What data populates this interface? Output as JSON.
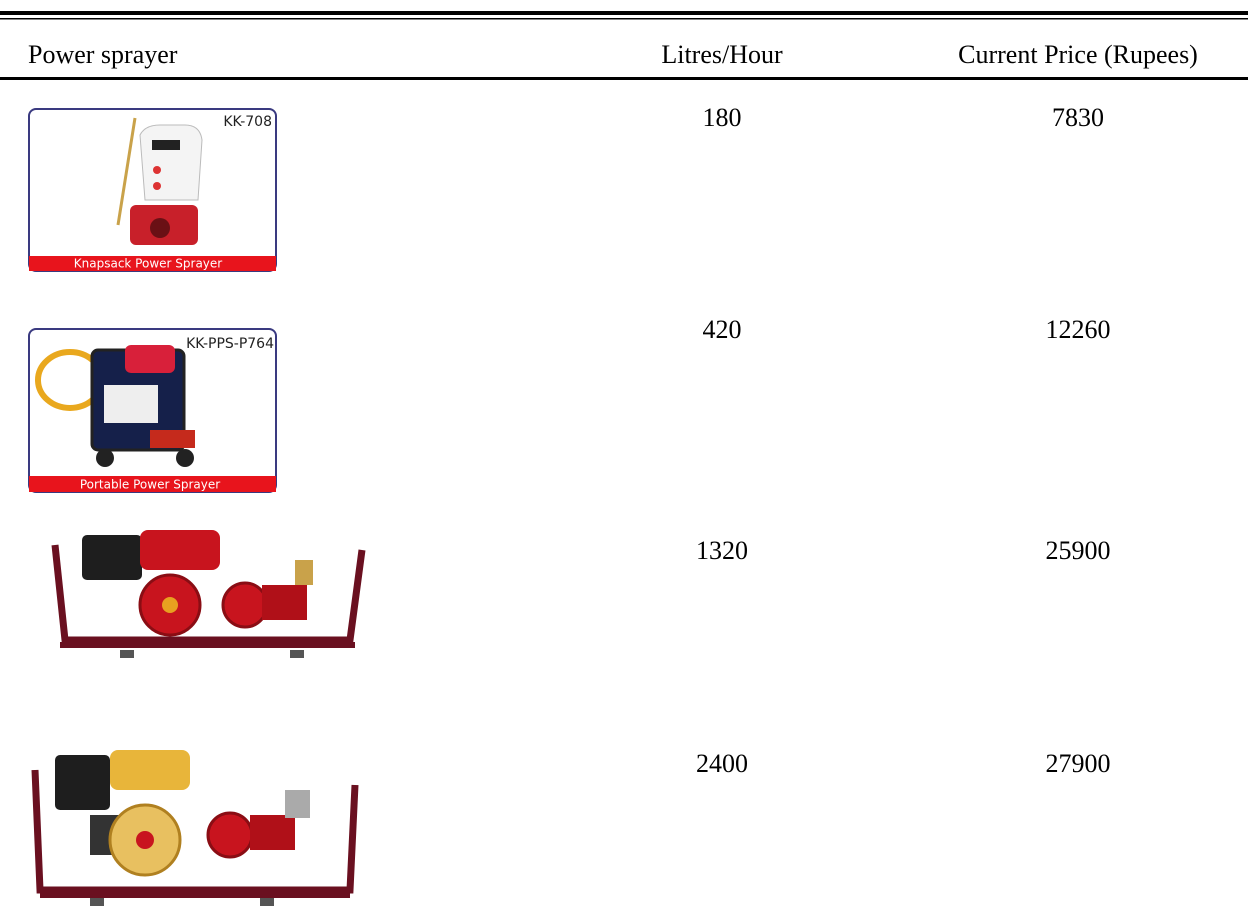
{
  "table": {
    "header": [
      "Power sprayer",
      "Litres/Hour",
      "Current Price (Rupees)"
    ],
    "rows": [
      {
        "image": {
          "model": "KK-708",
          "caption": "Knapsack Power Sprayer"
        },
        "litres_per_hour": 180,
        "price": 7830
      },
      {
        "image": {
          "model": "KK-PPS-P764",
          "caption": "Portable Power Sprayer"
        },
        "litres_per_hour": 420,
        "price": 12260
      },
      {
        "litres_per_hour": 1320,
        "price": 25900
      },
      {
        "litres_per_hour": 2400,
        "price": 27900
      }
    ]
  }
}
